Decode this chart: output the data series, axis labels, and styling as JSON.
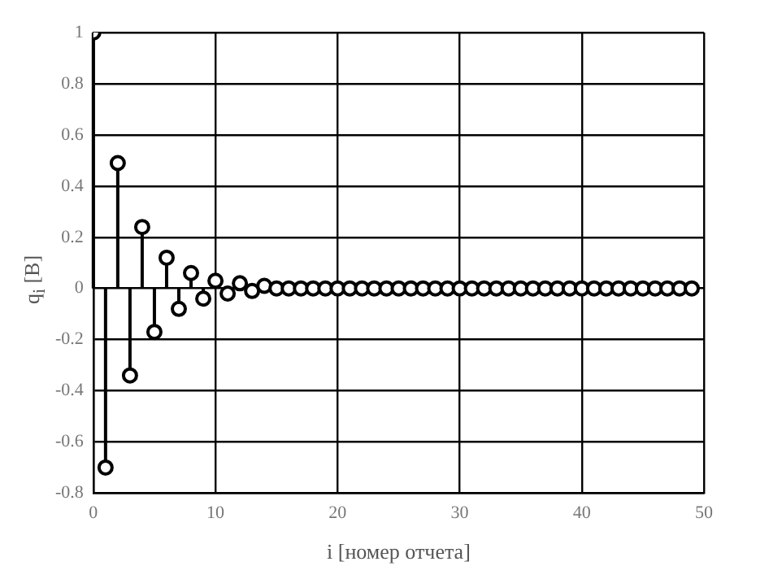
{
  "chart_data": {
    "type": "lollipop",
    "xlabel": "i [номер отчета]",
    "ylabel": "q$_{i}$ [В]",
    "x": [
      0,
      1,
      2,
      3,
      4,
      5,
      6,
      7,
      8,
      9,
      10,
      11,
      12,
      13,
      14,
      15,
      16,
      17,
      18,
      19,
      20,
      21,
      22,
      23,
      24,
      25,
      26,
      27,
      28,
      29,
      30,
      31,
      32,
      33,
      34,
      35,
      36,
      37,
      38,
      39,
      40,
      41,
      42,
      43,
      44,
      45,
      46,
      47,
      48,
      49
    ],
    "values": [
      1,
      -0.7,
      0.49,
      -0.34,
      0.24,
      -0.17,
      0.12,
      -0.08,
      0.06,
      -0.04,
      0.03,
      -0.02,
      0.02,
      -0.01,
      0.01,
      0,
      0,
      0,
      0,
      0,
      0,
      0,
      0,
      0,
      0,
      0,
      0,
      0,
      0,
      0,
      0,
      0,
      0,
      0,
      0,
      0,
      0,
      0,
      0,
      0,
      0,
      0,
      0,
      0,
      0,
      0,
      0,
      0,
      0,
      0
    ],
    "color": "#000000",
    "marker": "circle",
    "xlim": [
      0,
      50
    ],
    "xticks": [
      0,
      10,
      20,
      30,
      40,
      50
    ],
    "ylim": [
      -0.8,
      1
    ],
    "yticks": [
      -0.8,
      -0.6,
      -0.4,
      -0.2,
      0,
      0.2,
      0.4,
      0.6,
      0.8,
      1
    ],
    "grid": true,
    "legend": false
  }
}
